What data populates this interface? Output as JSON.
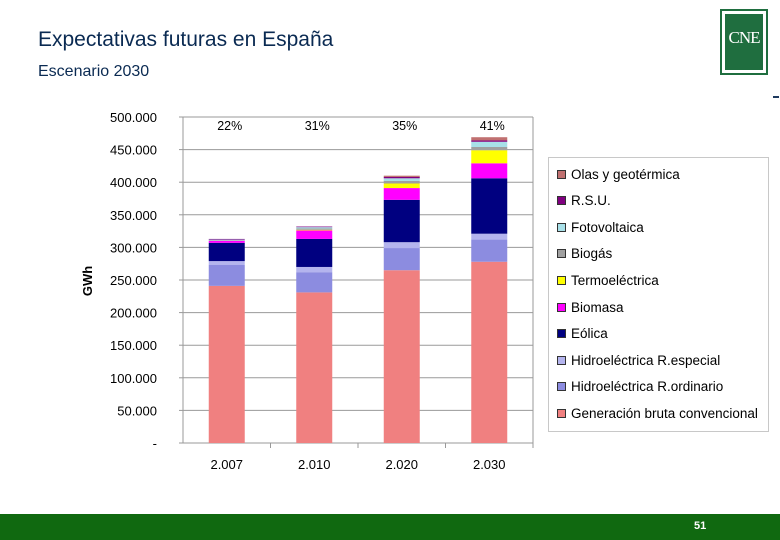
{
  "slide": {
    "title": "Expectativas futuras en España",
    "subtitle": "Escenario 2030",
    "logo_text": "CNE",
    "page_number": "51"
  },
  "colors": {
    "footer": "#106910",
    "title": "#0a2a52"
  },
  "chart_data": {
    "type": "bar",
    "stacked": true,
    "categories": [
      "2.007",
      "2.010",
      "2.020",
      "2.030"
    ],
    "ylabel": "GWh",
    "xlabel": "",
    "ylim": [
      0,
      500000
    ],
    "yticks": [
      0,
      50000,
      100000,
      150000,
      200000,
      250000,
      300000,
      350000,
      400000,
      450000,
      500000
    ],
    "ytick_labels": [
      "-",
      "50.000",
      "100.000",
      "150.000",
      "200.000",
      "250.000",
      "300.000",
      "350.000",
      "400.000",
      "450.000",
      "500.000"
    ],
    "grid": true,
    "legend_position": "right",
    "annotations": [
      "22%",
      "31%",
      "35%",
      "41%"
    ],
    "series": [
      {
        "name": "Generación bruta convencional",
        "color": "#f08080",
        "values": [
          241000,
          231000,
          265000,
          278000
        ]
      },
      {
        "name": "Hidroeléctrica R.ordinario",
        "color": "#8c8ce0",
        "values": [
          32000,
          31000,
          34000,
          34000
        ]
      },
      {
        "name": "Hidroeléctrica R.especial",
        "color": "#b4b4ee",
        "values": [
          6000,
          8000,
          9000,
          9000
        ]
      },
      {
        "name": "Eólica",
        "color": "#000080",
        "values": [
          28000,
          43000,
          65000,
          85000
        ]
      },
      {
        "name": "Biomasa",
        "color": "#ff00ff",
        "values": [
          3000,
          13000,
          18000,
          23000
        ]
      },
      {
        "name": "Termoeléctrica",
        "color": "#ffff00",
        "values": [
          0,
          1000,
          7000,
          20000
        ]
      },
      {
        "name": "Biogás",
        "color": "#a0a0a0",
        "values": [
          1000,
          2000,
          4000,
          5000
        ]
      },
      {
        "name": "Fotovoltaica",
        "color": "#a8e0e8",
        "values": [
          1000,
          2000,
          4000,
          8000
        ]
      },
      {
        "name": "R.S.U.",
        "color": "#800080",
        "values": [
          1000,
          1000,
          2000,
          2000
        ]
      },
      {
        "name": "Olas y geotérmica",
        "color": "#c07070",
        "values": [
          0,
          0,
          2000,
          5000
        ]
      }
    ]
  }
}
